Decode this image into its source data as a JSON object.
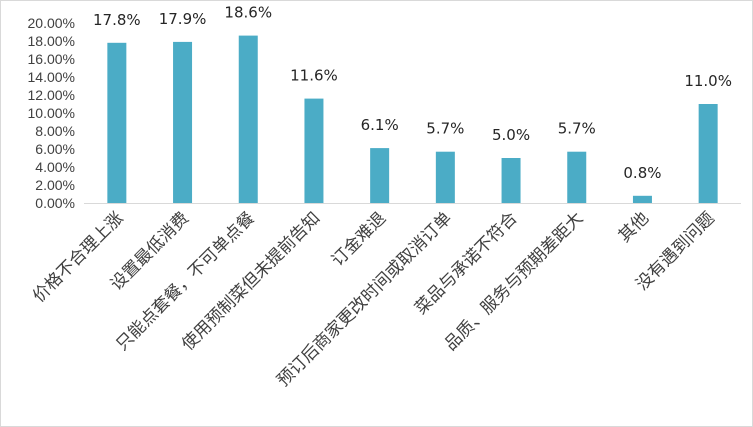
{
  "chart_data": {
    "type": "bar",
    "title": "",
    "xlabel": "",
    "ylabel": "",
    "categories": [
      "价格不合理上涨",
      "设置最低消费",
      "只能点套餐，不可单点餐",
      "使用预制菜但未提前告知",
      "订金难退",
      "预订后商家更改时间或取消订单",
      "菜品与承诺不符合",
      "品质、服务与预期差距大",
      "其他",
      "没有遇到问题"
    ],
    "values": [
      17.8,
      17.9,
      18.6,
      11.6,
      6.1,
      5.7,
      5.0,
      5.7,
      0.8,
      11.0
    ],
    "data_labels": [
      "17.8%",
      "17.9%",
      "18.6%",
      "11.6%",
      "6.1%",
      "5.7%",
      "5.0%",
      "5.7%",
      "0.8%",
      "11.0%"
    ],
    "ylim": [
      0,
      20
    ],
    "yticks": [
      "0.00%",
      "2.00%",
      "4.00%",
      "6.00%",
      "8.00%",
      "10.00%",
      "12.00%",
      "14.00%",
      "16.00%",
      "18.00%",
      "20.00%"
    ],
    "bar_color": "#4bacc6",
    "grid": false,
    "legend": "none"
  }
}
